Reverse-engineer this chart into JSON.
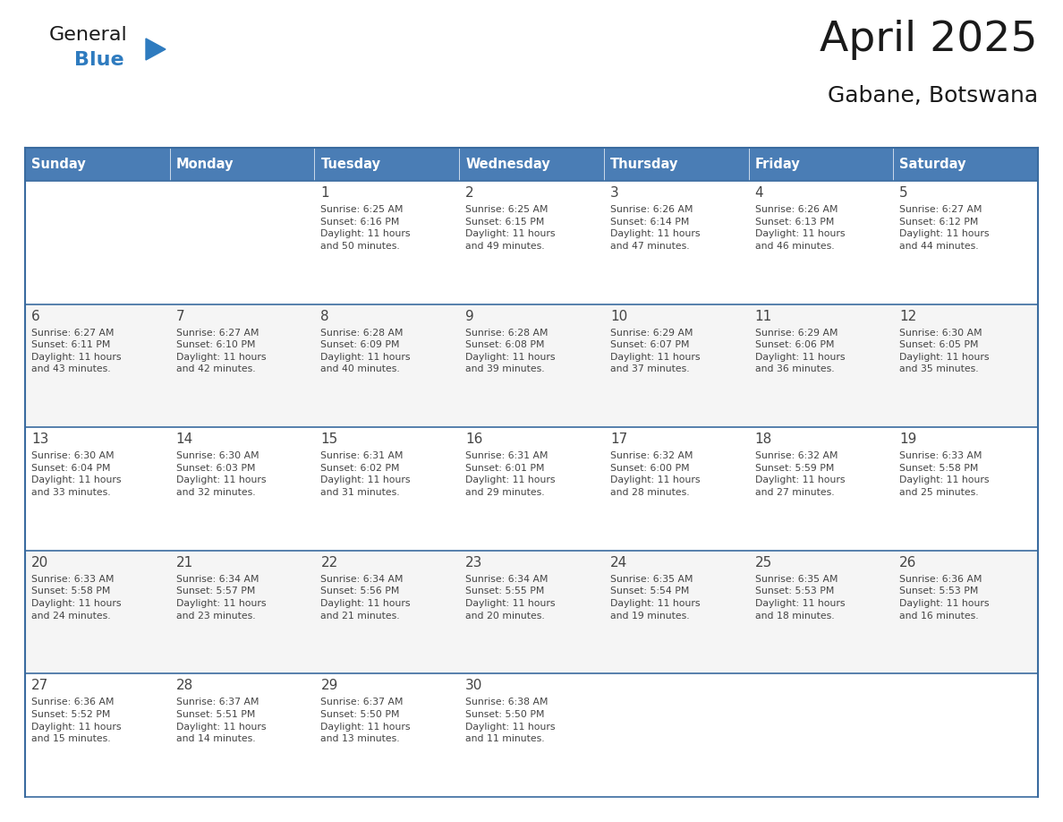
{
  "title": "April 2025",
  "subtitle": "Gabane, Botswana",
  "days_of_week": [
    "Sunday",
    "Monday",
    "Tuesday",
    "Wednesday",
    "Thursday",
    "Friday",
    "Saturday"
  ],
  "header_bg": "#4A7DB5",
  "header_fg": "#FFFFFF",
  "cell_bg_odd": "#F5F5F5",
  "cell_bg_even": "#FFFFFF",
  "grid_color": "#3A6B9F",
  "text_color": "#444444",
  "title_color": "#1a1a1a",
  "weeks": [
    [
      {
        "day": null,
        "info": null
      },
      {
        "day": null,
        "info": null
      },
      {
        "day": 1,
        "info": "Sunrise: 6:25 AM\nSunset: 6:16 PM\nDaylight: 11 hours\nand 50 minutes."
      },
      {
        "day": 2,
        "info": "Sunrise: 6:25 AM\nSunset: 6:15 PM\nDaylight: 11 hours\nand 49 minutes."
      },
      {
        "day": 3,
        "info": "Sunrise: 6:26 AM\nSunset: 6:14 PM\nDaylight: 11 hours\nand 47 minutes."
      },
      {
        "day": 4,
        "info": "Sunrise: 6:26 AM\nSunset: 6:13 PM\nDaylight: 11 hours\nand 46 minutes."
      },
      {
        "day": 5,
        "info": "Sunrise: 6:27 AM\nSunset: 6:12 PM\nDaylight: 11 hours\nand 44 minutes."
      }
    ],
    [
      {
        "day": 6,
        "info": "Sunrise: 6:27 AM\nSunset: 6:11 PM\nDaylight: 11 hours\nand 43 minutes."
      },
      {
        "day": 7,
        "info": "Sunrise: 6:27 AM\nSunset: 6:10 PM\nDaylight: 11 hours\nand 42 minutes."
      },
      {
        "day": 8,
        "info": "Sunrise: 6:28 AM\nSunset: 6:09 PM\nDaylight: 11 hours\nand 40 minutes."
      },
      {
        "day": 9,
        "info": "Sunrise: 6:28 AM\nSunset: 6:08 PM\nDaylight: 11 hours\nand 39 minutes."
      },
      {
        "day": 10,
        "info": "Sunrise: 6:29 AM\nSunset: 6:07 PM\nDaylight: 11 hours\nand 37 minutes."
      },
      {
        "day": 11,
        "info": "Sunrise: 6:29 AM\nSunset: 6:06 PM\nDaylight: 11 hours\nand 36 minutes."
      },
      {
        "day": 12,
        "info": "Sunrise: 6:30 AM\nSunset: 6:05 PM\nDaylight: 11 hours\nand 35 minutes."
      }
    ],
    [
      {
        "day": 13,
        "info": "Sunrise: 6:30 AM\nSunset: 6:04 PM\nDaylight: 11 hours\nand 33 minutes."
      },
      {
        "day": 14,
        "info": "Sunrise: 6:30 AM\nSunset: 6:03 PM\nDaylight: 11 hours\nand 32 minutes."
      },
      {
        "day": 15,
        "info": "Sunrise: 6:31 AM\nSunset: 6:02 PM\nDaylight: 11 hours\nand 31 minutes."
      },
      {
        "day": 16,
        "info": "Sunrise: 6:31 AM\nSunset: 6:01 PM\nDaylight: 11 hours\nand 29 minutes."
      },
      {
        "day": 17,
        "info": "Sunrise: 6:32 AM\nSunset: 6:00 PM\nDaylight: 11 hours\nand 28 minutes."
      },
      {
        "day": 18,
        "info": "Sunrise: 6:32 AM\nSunset: 5:59 PM\nDaylight: 11 hours\nand 27 minutes."
      },
      {
        "day": 19,
        "info": "Sunrise: 6:33 AM\nSunset: 5:58 PM\nDaylight: 11 hours\nand 25 minutes."
      }
    ],
    [
      {
        "day": 20,
        "info": "Sunrise: 6:33 AM\nSunset: 5:58 PM\nDaylight: 11 hours\nand 24 minutes."
      },
      {
        "day": 21,
        "info": "Sunrise: 6:34 AM\nSunset: 5:57 PM\nDaylight: 11 hours\nand 23 minutes."
      },
      {
        "day": 22,
        "info": "Sunrise: 6:34 AM\nSunset: 5:56 PM\nDaylight: 11 hours\nand 21 minutes."
      },
      {
        "day": 23,
        "info": "Sunrise: 6:34 AM\nSunset: 5:55 PM\nDaylight: 11 hours\nand 20 minutes."
      },
      {
        "day": 24,
        "info": "Sunrise: 6:35 AM\nSunset: 5:54 PM\nDaylight: 11 hours\nand 19 minutes."
      },
      {
        "day": 25,
        "info": "Sunrise: 6:35 AM\nSunset: 5:53 PM\nDaylight: 11 hours\nand 18 minutes."
      },
      {
        "day": 26,
        "info": "Sunrise: 6:36 AM\nSunset: 5:53 PM\nDaylight: 11 hours\nand 16 minutes."
      }
    ],
    [
      {
        "day": 27,
        "info": "Sunrise: 6:36 AM\nSunset: 5:52 PM\nDaylight: 11 hours\nand 15 minutes."
      },
      {
        "day": 28,
        "info": "Sunrise: 6:37 AM\nSunset: 5:51 PM\nDaylight: 11 hours\nand 14 minutes."
      },
      {
        "day": 29,
        "info": "Sunrise: 6:37 AM\nSunset: 5:50 PM\nDaylight: 11 hours\nand 13 minutes."
      },
      {
        "day": 30,
        "info": "Sunrise: 6:38 AM\nSunset: 5:50 PM\nDaylight: 11 hours\nand 11 minutes."
      },
      {
        "day": null,
        "info": null
      },
      {
        "day": null,
        "info": null
      },
      {
        "day": null,
        "info": null
      }
    ]
  ],
  "logo_color_general": "#1a1a1a",
  "logo_color_blue": "#2E7BBF",
  "logo_triangle_color": "#2E7BBF",
  "fig_width": 11.88,
  "fig_height": 9.18,
  "dpi": 100
}
